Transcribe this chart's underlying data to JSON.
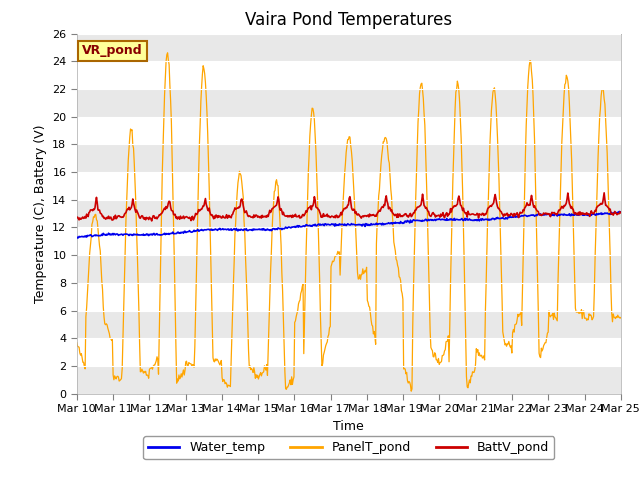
{
  "title": "Vaira Pond Temperatures",
  "xlabel": "Time",
  "ylabel": "Temperature (C), Battery (V)",
  "annotation": "VR_pond",
  "ylim": [
    0,
    26
  ],
  "yticks": [
    0,
    2,
    4,
    6,
    8,
    10,
    12,
    14,
    16,
    18,
    20,
    22,
    24,
    26
  ],
  "x_tick_labels": [
    "Mar 10",
    "Mar 11",
    "Mar 12",
    "Mar 13",
    "Mar 14",
    "Mar 15",
    "Mar 16",
    "Mar 17",
    "Mar 18",
    "Mar 19",
    "Mar 20",
    "Mar 21",
    "Mar 22",
    "Mar 23",
    "Mar 24",
    "Mar 25"
  ],
  "water_color": "#0000ee",
  "panel_color": "#ffa500",
  "batt_color": "#cc0000",
  "bg_color": "#ffffff",
  "stripe_color": "#e8e8e8",
  "legend_labels": [
    "Water_temp",
    "PanelT_pond",
    "BattV_pond"
  ],
  "annotation_bg": "#ffff99",
  "annotation_border": "#aa6600",
  "annotation_text_color": "#880000",
  "title_fontsize": 12,
  "label_fontsize": 9,
  "tick_fontsize": 8,
  "legend_fontsize": 9,
  "peak_heights": [
    13,
    19,
    24.5,
    23.5,
    16,
    15.5,
    20.5,
    18.5,
    18.5,
    22.5,
    22.5,
    22,
    24,
    23,
    22
  ],
  "min_heights": [
    5.5,
    1.7,
    0.9,
    2.5,
    2.0,
    0.3,
    2.0,
    8.0,
    10.5,
    3.5,
    0.3,
    4.0,
    2.5,
    6.0,
    5.5
  ]
}
